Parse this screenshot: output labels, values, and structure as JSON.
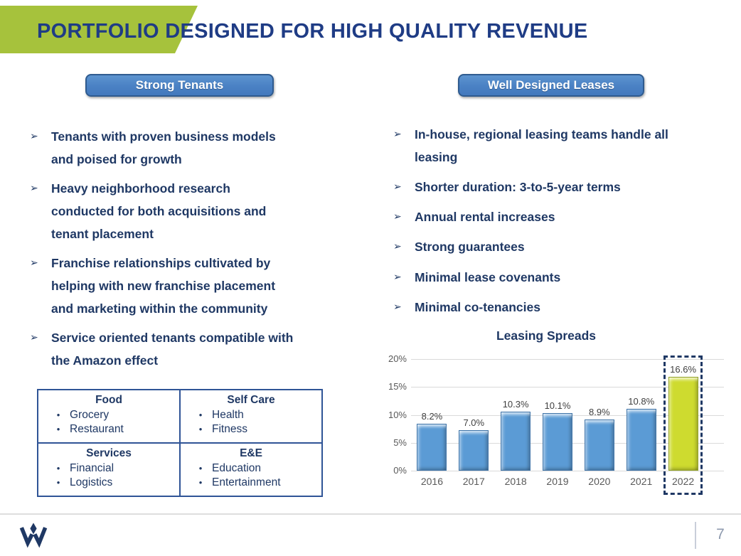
{
  "slide": {
    "title": "PORTFOLIO DESIGNED FOR HIGH QUALITY REVENUE",
    "page_number": "7"
  },
  "icons": {
    "arrow_bullet": "➢",
    "dot_bullet": "•"
  },
  "left_panel": {
    "header": "Strong Tenants",
    "bullets": [
      "Tenants with proven business models and poised for growth",
      "Heavy neighborhood research conducted for both acquisitions and tenant placement",
      "Franchise relationships cultivated by helping with new franchise placement and marketing within the community",
      "Service oriented tenants compatible with the Amazon effect"
    ],
    "table": {
      "cells": [
        {
          "header": "Food",
          "items": [
            "Grocery",
            "Restaurant"
          ]
        },
        {
          "header": "Self Care",
          "items": [
            "Health",
            "Fitness"
          ]
        },
        {
          "header": "Services",
          "items": [
            "Financial",
            "Logistics"
          ]
        },
        {
          "header": "E&E",
          "items": [
            "Education",
            "Entertainment"
          ]
        }
      ]
    }
  },
  "right_panel": {
    "header": "Well Designed Leases",
    "bullets": [
      "In-house, regional leasing teams handle all leasing",
      "Shorter duration: 3-to-5-year terms",
      "Annual rental increases",
      "Strong guarantees",
      "Minimal lease covenants",
      "Minimal co-tenancies"
    ]
  },
  "chart_data": {
    "type": "bar",
    "title": "Leasing Spreads",
    "categories": [
      "2016",
      "2017",
      "2018",
      "2019",
      "2020",
      "2021",
      "2022"
    ],
    "values": [
      8.2,
      7.0,
      10.3,
      10.1,
      8.9,
      10.8,
      16.6
    ],
    "labels": [
      "8.2%",
      "7.0%",
      "10.3%",
      "10.1%",
      "8.9%",
      "10.8%",
      "16.6%"
    ],
    "xlabel": "",
    "ylabel": "",
    "ylim": [
      0,
      20
    ],
    "yticks": [
      "0%",
      "5%",
      "10%",
      "15%",
      "20%"
    ],
    "grid": true,
    "legend": false,
    "highlight_index": 6,
    "bar_color": "#5B9BD5",
    "bar_border": "#3F74A8",
    "highlight_color": "#CEDB2F",
    "highlight_border": "#93A227"
  },
  "colors": {
    "navy_text": "#1F3864",
    "title_blue": "#1F3C85",
    "accent_green": "#A6C23C",
    "button_blue": "#4A81C4",
    "button_border": "#2F5B8F",
    "grid_gray": "#DADADA",
    "axis_text_gray": "#595959",
    "data_label_gray": "#3F3F3F",
    "page_number_gray": "#8D99AE"
  }
}
